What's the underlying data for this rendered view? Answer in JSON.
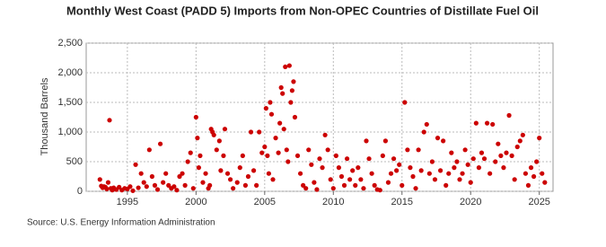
{
  "chart_data": {
    "type": "scatter",
    "title": "Monthly West Coast (PADD 5) Imports from Non-OPEC Countries of Distillate Fuel Oil",
    "y_label": "Thousand Barrels",
    "source": "Source: U.S. Energy Information Administration",
    "color": "#cc0000",
    "grid": true,
    "xlim": [
      1992,
      2026
    ],
    "xticks": [
      1995,
      2000,
      2005,
      2010,
      2015,
      2020,
      2025
    ],
    "ylim": [
      0,
      2500
    ],
    "yticks": [
      0,
      500,
      {
        "value": 1000,
        "label": "1,000"
      },
      {
        "value": 1500,
        "label": "1,500"
      },
      {
        "value": 2000,
        "label": "2,000"
      },
      {
        "value": 2500,
        "label": "2,500"
      }
    ],
    "x": [
      1993.0,
      1993.1,
      1993.2,
      1993.3,
      1993.4,
      1993.5,
      1993.6,
      1993.7,
      1993.8,
      1993.9,
      1994.0,
      1994.2,
      1994.4,
      1994.6,
      1994.8,
      1995.0,
      1995.2,
      1995.4,
      1995.6,
      1995.8,
      1996.0,
      1996.2,
      1996.4,
      1996.6,
      1996.8,
      1997.0,
      1997.2,
      1997.4,
      1997.6,
      1997.8,
      1998.0,
      1998.2,
      1998.4,
      1998.6,
      1998.8,
      1999.0,
      1999.2,
      1999.4,
      1999.6,
      1999.8,
      2000.0,
      2000.1,
      2000.2,
      2000.3,
      2000.5,
      2000.7,
      2000.9,
      2001.0,
      2001.1,
      2001.2,
      2001.3,
      2001.5,
      2001.7,
      2001.8,
      2002.0,
      2002.1,
      2002.3,
      2002.5,
      2002.7,
      2003.0,
      2003.2,
      2003.4,
      2003.6,
      2003.8,
      2004.0,
      2004.2,
      2004.4,
      2004.6,
      2004.8,
      2005.0,
      2005.1,
      2005.2,
      2005.3,
      2005.4,
      2005.5,
      2005.6,
      2005.8,
      2006.0,
      2006.1,
      2006.2,
      2006.3,
      2006.4,
      2006.5,
      2006.6,
      2006.7,
      2006.8,
      2006.9,
      2007.0,
      2007.1,
      2007.2,
      2007.4,
      2007.6,
      2007.8,
      2008.0,
      2008.2,
      2008.4,
      2008.6,
      2008.8,
      2009.0,
      2009.2,
      2009.4,
      2009.6,
      2009.8,
      2010.0,
      2010.2,
      2010.4,
      2010.6,
      2010.8,
      2011.0,
      2011.2,
      2011.4,
      2011.6,
      2011.8,
      2012.0,
      2012.2,
      2012.4,
      2012.6,
      2012.8,
      2013.0,
      2013.2,
      2013.4,
      2013.6,
      2013.8,
      2014.0,
      2014.2,
      2014.4,
      2014.6,
      2014.8,
      2015.0,
      2015.2,
      2015.4,
      2015.6,
      2015.8,
      2016.0,
      2016.2,
      2016.4,
      2016.6,
      2016.8,
      2017.0,
      2017.2,
      2017.4,
      2017.6,
      2017.8,
      2018.0,
      2018.2,
      2018.4,
      2018.6,
      2018.8,
      2019.0,
      2019.2,
      2019.4,
      2019.6,
      2019.8,
      2020.0,
      2020.2,
      2020.4,
      2020.6,
      2020.8,
      2021.0,
      2021.2,
      2021.4,
      2021.6,
      2021.8,
      2022.0,
      2022.2,
      2022.4,
      2022.6,
      2022.8,
      2023.0,
      2023.2,
      2023.4,
      2023.6,
      2023.8,
      2024.0,
      2024.2,
      2024.4,
      2024.6,
      2024.8,
      2025.0,
      2025.2,
      2025.4
    ],
    "values": [
      200,
      90,
      60,
      80,
      70,
      40,
      150,
      1200,
      50,
      20,
      60,
      30,
      70,
      20,
      50,
      40,
      80,
      10,
      450,
      60,
      300,
      150,
      80,
      700,
      250,
      100,
      30,
      800,
      150,
      300,
      100,
      50,
      80,
      20,
      250,
      300,
      100,
      500,
      650,
      50,
      1250,
      900,
      400,
      600,
      150,
      300,
      50,
      100,
      1050,
      1000,
      950,
      700,
      850,
      350,
      600,
      1050,
      300,
      200,
      50,
      150,
      400,
      600,
      100,
      250,
      1000,
      350,
      100,
      1000,
      650,
      750,
      1400,
      600,
      300,
      1500,
      1300,
      200,
      900,
      650,
      1150,
      1750,
      1650,
      1050,
      2100,
      700,
      500,
      2120,
      1500,
      1700,
      1850,
      1250,
      600,
      300,
      100,
      50,
      700,
      450,
      150,
      30,
      550,
      400,
      950,
      700,
      200,
      50,
      600,
      400,
      250,
      100,
      550,
      200,
      350,
      100,
      400,
      200,
      50,
      850,
      550,
      300,
      100,
      30,
      20,
      600,
      850,
      150,
      300,
      550,
      350,
      450,
      100,
      1500,
      700,
      400,
      250,
      50,
      700,
      350,
      1000,
      1130,
      300,
      500,
      200,
      900,
      350,
      850,
      100,
      300,
      650,
      400,
      500,
      200,
      300,
      700,
      450,
      150,
      550,
      1150,
      400,
      650,
      550,
      1150,
      300,
      1130,
      500,
      800,
      600,
      400,
      650,
      1280,
      600,
      200,
      750,
      850,
      950,
      300,
      100,
      400,
      250,
      500,
      900,
      300,
      150
    ]
  }
}
